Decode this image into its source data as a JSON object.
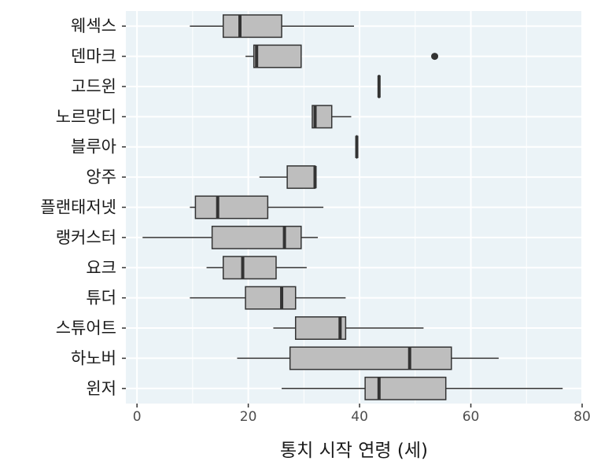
{
  "chart_data": {
    "type": "boxplot",
    "orientation": "horizontal",
    "xlabel": "통치 시작 연령 (세)",
    "xlim": [
      -2,
      80
    ],
    "xticks": [
      0,
      20,
      40,
      60,
      80
    ],
    "grid": true,
    "categories": [
      "웨섹스",
      "덴마크",
      "고드윈",
      "노르망디",
      "블루아",
      "앙주",
      "플랜태저넷",
      "랭커스터",
      "요크",
      "튜더",
      "스튜어트",
      "하노버",
      "윈저"
    ],
    "boxes": [
      {
        "category": "웨섹스",
        "whisker_low": 9.5,
        "q1": 15.5,
        "median": 18.5,
        "q3": 26,
        "whisker_high": 39,
        "outliers": []
      },
      {
        "category": "덴마크",
        "whisker_low": 19.5,
        "q1": 21,
        "median": 21.5,
        "q3": 29.5,
        "whisker_high": 29.5,
        "outliers": [
          53.5
        ]
      },
      {
        "category": "고드윈",
        "whisker_low": 43.5,
        "q1": 43.5,
        "median": 43.5,
        "q3": 43.5,
        "whisker_high": 43.5,
        "outliers": []
      },
      {
        "category": "노르망디",
        "whisker_low": 31.5,
        "q1": 31.5,
        "median": 32,
        "q3": 35,
        "whisker_high": 38.5,
        "outliers": []
      },
      {
        "category": "블루아",
        "whisker_low": 39.5,
        "q1": 39.5,
        "median": 39.5,
        "q3": 39.5,
        "whisker_high": 39.5,
        "outliers": []
      },
      {
        "category": "앙주",
        "whisker_low": 22,
        "q1": 27,
        "median": 32,
        "q3": 32,
        "whisker_high": 32,
        "outliers": []
      },
      {
        "category": "플랜태저넷",
        "whisker_low": 9.5,
        "q1": 10.5,
        "median": 14.5,
        "q3": 23.5,
        "whisker_high": 33.5,
        "outliers": []
      },
      {
        "category": "랭커스터",
        "whisker_low": 1,
        "q1": 13.5,
        "median": 26.5,
        "q3": 29.5,
        "whisker_high": 32.5,
        "outliers": []
      },
      {
        "category": "요크",
        "whisker_low": 12.5,
        "q1": 15.5,
        "median": 19,
        "q3": 25,
        "whisker_high": 30.5,
        "outliers": []
      },
      {
        "category": "튜더",
        "whisker_low": 9.5,
        "q1": 19.5,
        "median": 26,
        "q3": 28.5,
        "whisker_high": 37.5,
        "outliers": []
      },
      {
        "category": "스튜어트",
        "whisker_low": 24.5,
        "q1": 28.5,
        "median": 36.5,
        "q3": 37.5,
        "whisker_high": 51.5,
        "outliers": []
      },
      {
        "category": "하노버",
        "whisker_low": 18,
        "q1": 27.5,
        "median": 49,
        "q3": 56.5,
        "whisker_high": 65,
        "outliers": []
      },
      {
        "category": "윈저",
        "whisker_low": 26,
        "q1": 41,
        "median": 43.5,
        "q3": 55.5,
        "whisker_high": 76.5,
        "outliers": []
      }
    ],
    "colors": {
      "panel_background": "#EBF3F7",
      "grid": "#FFFFFF",
      "box_fill": "#BEBEBE",
      "line": "#333333"
    }
  }
}
